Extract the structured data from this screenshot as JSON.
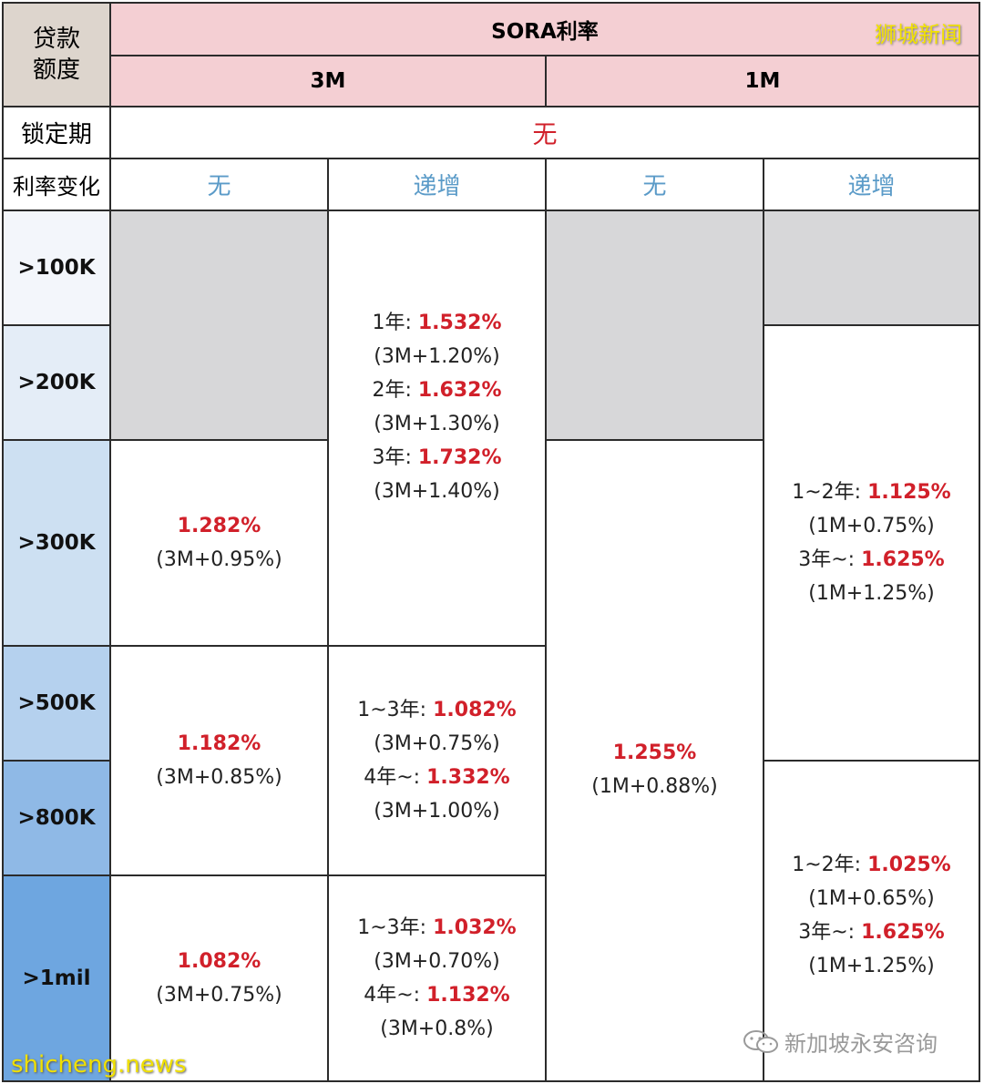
{
  "header": {
    "loan_amount": "贷款额度",
    "sora_rate": "SORA利率",
    "col_3m": "3M",
    "col_1m": "1M",
    "lock_label": "锁定期",
    "lock_value": "无",
    "rate_change_label": "利率变化",
    "none": "无",
    "increasing": "递增"
  },
  "rows": [
    ">100K",
    ">200K",
    ">300K",
    ">500K",
    ">800K",
    ">1mil"
  ],
  "cells": {
    "m3_none_300k": {
      "rate": "1.282%",
      "note": "(3M+0.95%)"
    },
    "m3_none_500k": {
      "rate": "1.182%",
      "note": "(3M+0.85%)"
    },
    "m3_none_1mil": {
      "rate": "1.082%",
      "note": "(3M+0.75%)"
    },
    "m3_inc_top": [
      {
        "term": "1年: ",
        "rate": "1.532%"
      },
      {
        "note": "(3M+1.20%)"
      },
      {
        "term": "2年: ",
        "rate": "1.632%"
      },
      {
        "note": "(3M+1.30%)"
      },
      {
        "term": "3年: ",
        "rate": "1.732%"
      },
      {
        "note": "(3M+1.40%)"
      }
    ],
    "m3_inc_mid": [
      {
        "term": "1~3年: ",
        "rate": "1.082%"
      },
      {
        "note": "(3M+0.75%)"
      },
      {
        "term": "4年~: ",
        "rate": "1.332%"
      },
      {
        "note": "(3M+1.00%)"
      }
    ],
    "m3_inc_bot": [
      {
        "term": "1~3年: ",
        "rate": "1.032%"
      },
      {
        "note": "(3M+0.70%)"
      },
      {
        "term": "4年~: ",
        "rate": "1.132%"
      },
      {
        "note": "(3M+0.8%)"
      }
    ],
    "m1_none": {
      "rate": "1.255%",
      "note": "(1M+0.88%)"
    },
    "m1_inc_mid": [
      {
        "term": "1~2年: ",
        "rate": "1.125%"
      },
      {
        "note": "(1M+0.75%)"
      },
      {
        "term": "3年~: ",
        "rate": "1.625%"
      },
      {
        "note": "(1M+1.25%)"
      }
    ],
    "m1_inc_bot": [
      {
        "term": "1~2年: ",
        "rate": "1.025%"
      },
      {
        "note": "(1M+0.65%)"
      },
      {
        "term": "3年~: ",
        "rate": "1.625%"
      },
      {
        "note": "(1M+1.25%)"
      }
    ]
  },
  "watermarks": {
    "top_right": "狮城新闻",
    "bottom_left": "shicheng.news",
    "bottom_right": "新加坡永安咨询"
  },
  "colors": {
    "header_pink": "#f4cfd3",
    "rate_red": "#d1202a",
    "label_blue": "#5b9bc8",
    "row_gradient": [
      "#f3f6fb",
      "#e4edf7",
      "#cde0f2",
      "#b5d1ee",
      "#8fb9e6",
      "#6ea6e0"
    ]
  }
}
